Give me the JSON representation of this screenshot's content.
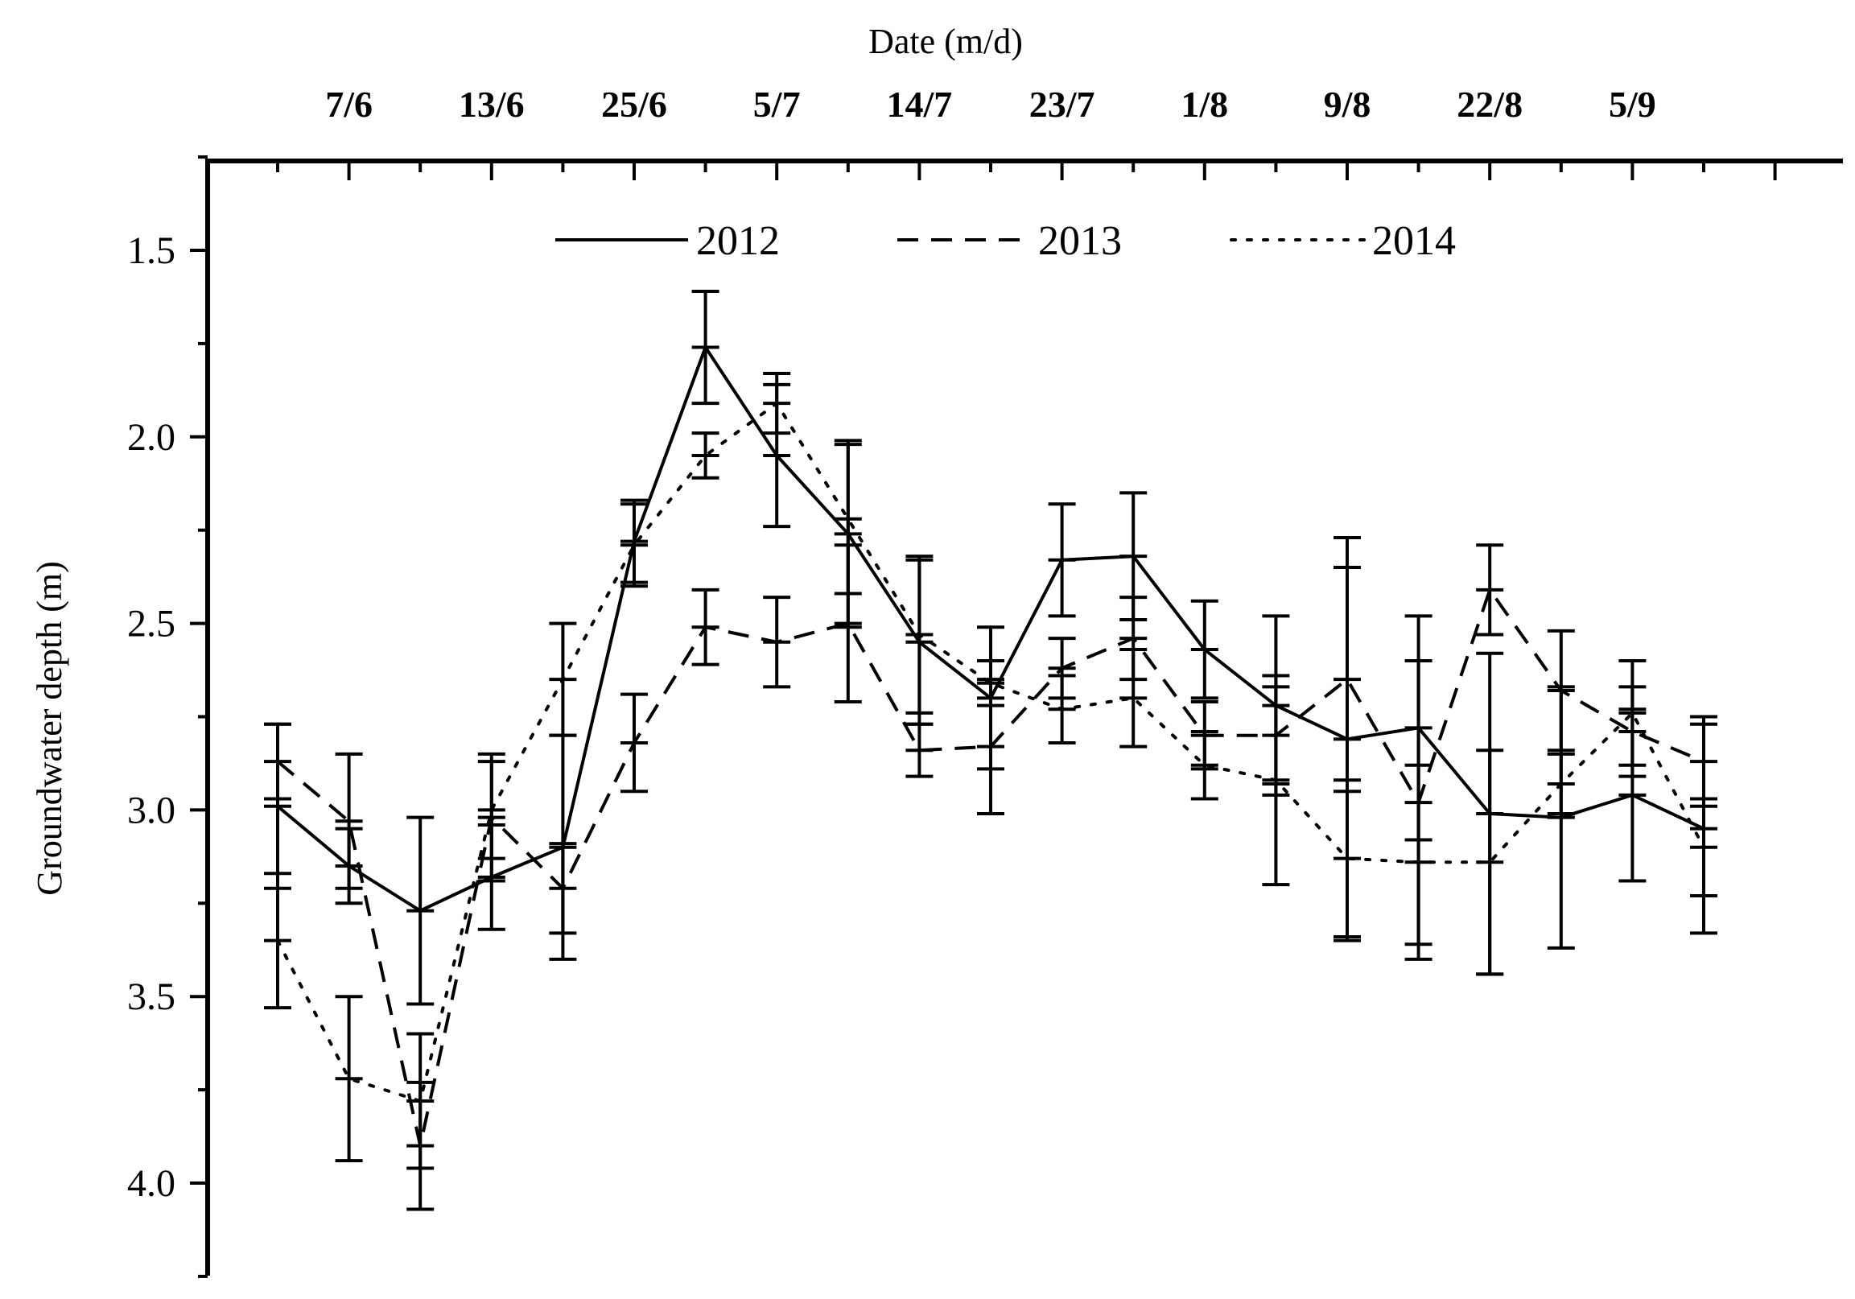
{
  "chart_data": {
    "type": "line",
    "title": "",
    "xlabel": "Date (m/d)",
    "ylabel": "Groundwater depth (m)",
    "x_axis_position": "top",
    "y_axis_inverted": true,
    "ylim": [
      4.25,
      1.25
    ],
    "yticks": [
      "1.5",
      "2.0",
      "2.5",
      "3.0",
      "3.5",
      "4.0"
    ],
    "x_tick_labels": [
      "7/6",
      "13/6",
      "25/6",
      "5/7",
      "14/7",
      "23/7",
      "1/8",
      "9/8",
      "22/8",
      "5/9"
    ],
    "legend_position": "top-center",
    "grid": false,
    "series": [
      {
        "name": "2012",
        "line_style": "solid",
        "values": [
          2.99,
          3.15,
          3.27,
          3.18,
          3.1,
          2.28,
          1.76,
          2.05,
          2.26,
          2.55,
          2.7,
          2.33,
          2.32,
          2.57,
          2.72,
          2.81,
          2.78,
          3.01,
          3.02,
          2.96,
          3.05
        ],
        "error": [
          0.22,
          0.1,
          0.25,
          0.14,
          0.3,
          0.11,
          0.15,
          0.19,
          0.25,
          0.22,
          0.19,
          0.15,
          0.17,
          0.13,
          0.24,
          0.54,
          0.3,
          0.43,
          0.35,
          0.23,
          0.28
        ]
      },
      {
        "name": "2013",
        "line_style": "dashed",
        "values": [
          2.87,
          3.03,
          3.9,
          3.02,
          3.21,
          2.82,
          2.51,
          2.55,
          2.5,
          2.84,
          2.83,
          2.62,
          2.54,
          2.8,
          2.8,
          2.65,
          2.98,
          2.41,
          2.68,
          2.79,
          2.87
        ],
        "error": [
          0.1,
          0.18,
          0.17,
          0.17,
          0.12,
          0.13,
          0.1,
          0.12,
          0.21,
          0.07,
          0.18,
          0.08,
          0.11,
          0.09,
          0.13,
          0.3,
          0.38,
          0.12,
          0.16,
          0.12,
          0.12
        ]
      },
      {
        "name": "2014",
        "line_style": "dotted",
        "values": [
          3.35,
          3.72,
          3.78,
          3.0,
          2.65,
          2.29,
          2.05,
          1.91,
          2.22,
          2.53,
          2.66,
          2.73,
          2.7,
          2.88,
          2.92,
          3.13,
          3.14,
          3.14,
          2.93,
          2.74,
          3.1
        ],
        "error": [
          0.18,
          0.22,
          0.18,
          0.13,
          0.15,
          0.11,
          0.06,
          0.08,
          0.2,
          0.21,
          0.06,
          0.09,
          0.13,
          0.09,
          0.28,
          0.21,
          0.26,
          0.3,
          0.08,
          0.14,
          0.13
        ]
      }
    ]
  }
}
